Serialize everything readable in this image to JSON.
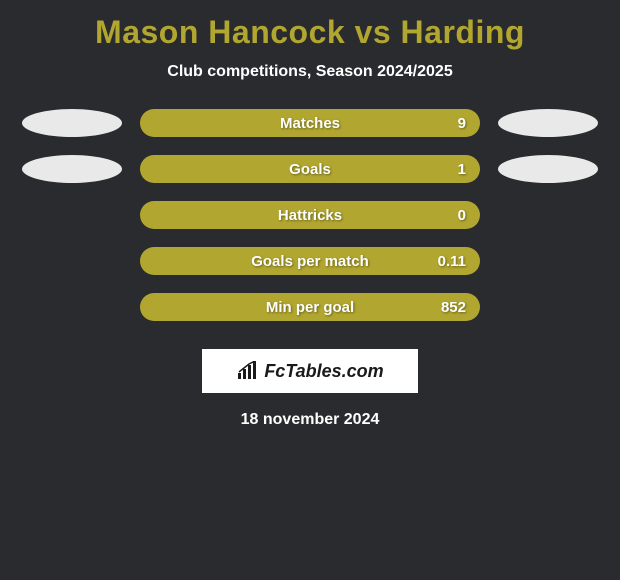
{
  "title_text": "Mason Hancock vs Harding",
  "title_color": "#b1a62f",
  "subtitle": "Club competitions, Season 2024/2025",
  "background_color": "#2a2b2e",
  "text_color": "#ffffff",
  "bar_color": "#b1a62f",
  "oval_left_color": "#e9e9e9",
  "oval_right_color": "#e9e9e9",
  "stats": [
    {
      "label": "Matches",
      "value": "9",
      "show_ovals": true
    },
    {
      "label": "Goals",
      "value": "1",
      "show_ovals": true
    },
    {
      "label": "Hattricks",
      "value": "0",
      "show_ovals": false
    },
    {
      "label": "Goals per match",
      "value": "0.11",
      "show_ovals": false
    },
    {
      "label": "Min per goal",
      "value": "852",
      "show_ovals": false
    }
  ],
  "brand": "FcTables.com",
  "date": "18 november 2024"
}
